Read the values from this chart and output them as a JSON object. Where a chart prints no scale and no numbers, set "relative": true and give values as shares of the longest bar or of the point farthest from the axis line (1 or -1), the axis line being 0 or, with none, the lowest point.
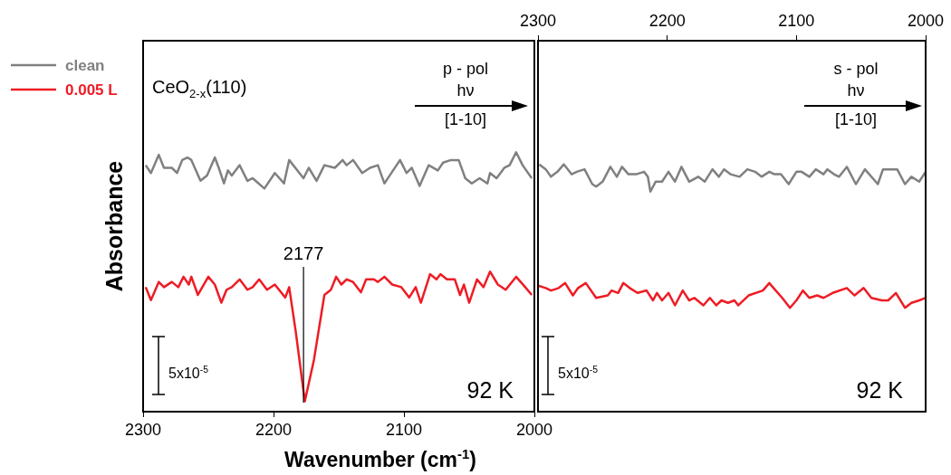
{
  "chart_data": [
    {
      "type": "line",
      "xlabel": "Wavenumber (cm$^{-1}$)",
      "ylabel": "Absorbance",
      "relative": true,
      "xlim": [
        2300,
        2000
      ],
      "xticks": [
        2300,
        2200,
        2100,
        2000
      ],
      "tick_labels": "x",
      "legend": "top left",
      "annotations": [
        "CeO$_{2-x}$(110)",
        "p - pol",
        "hν",
        "[1-10]",
        "5x10$^{-5}$",
        "92 K"
      ],
      "ref_lines": [
        {
          "axis": "x",
          "value": 2177,
          "label": "2177",
          "color": "#000000"
        }
      ],
      "series": [
        {
          "name": "clean",
          "color": "#808080",
          "x": [
            2298,
            2294,
            2288,
            2284,
            2280,
            2278,
            2274,
            2270,
            2266,
            2263,
            2256,
            2251,
            2245,
            2242,
            2238,
            2235,
            2232,
            2226,
            2220,
            2216,
            2207,
            2199,
            2192,
            2188,
            2177,
            2173,
            2167,
            2161,
            2153,
            2147,
            2144,
            2139,
            2132,
            2126,
            2120,
            2115,
            2111,
            2103,
            2098,
            2094,
            2088,
            2081,
            2074,
            2070,
            2064,
            2058,
            2053,
            2048,
            2042,
            2036,
            2034,
            2029,
            2023,
            2019,
            2014,
            2009,
            2002
          ],
          "values": [
            0.95,
            0.92,
            0.99,
            0.94,
            0.94,
            0.94,
            0.92,
            0.97,
            0.98,
            0.97,
            0.89,
            0.91,
            0.98,
            0.94,
            0.88,
            0.93,
            0.91,
            0.95,
            0.89,
            0.9,
            0.86,
            0.92,
            0.88,
            0.97,
            0.9,
            0.94,
            0.89,
            0.95,
            0.94,
            0.97,
            0.95,
            0.97,
            0.92,
            0.94,
            0.95,
            0.88,
            0.91,
            0.97,
            0.92,
            0.94,
            0.87,
            0.95,
            0.93,
            0.96,
            0.97,
            0.97,
            0.9,
            0.88,
            0.9,
            0.88,
            0.92,
            0.9,
            0.94,
            0.95,
            1.0,
            0.95,
            0.9
          ]
        },
        {
          "name": "0.005 L",
          "color": "#ee1c25",
          "x": [
            2298,
            2294,
            2288,
            2284,
            2278,
            2273,
            2269,
            2265,
            2263,
            2258,
            2250,
            2245,
            2240,
            2236,
            2232,
            2226,
            2220,
            2216,
            2211,
            2205,
            2199,
            2191,
            2188,
            2183,
            2176,
            2169,
            2161,
            2156,
            2152,
            2148,
            2144,
            2139,
            2133,
            2129,
            2123,
            2120,
            2115,
            2109,
            2102,
            2096,
            2091,
            2087,
            2080,
            2075,
            2072,
            2067,
            2061,
            2057,
            2054,
            2050,
            2044,
            2039,
            2034,
            2028,
            2022,
            2014,
            2007,
            2002
          ],
          "values": [
            0.48,
            0.43,
            0.5,
            0.48,
            0.5,
            0.48,
            0.52,
            0.49,
            0.52,
            0.45,
            0.52,
            0.49,
            0.42,
            0.47,
            0.48,
            0.51,
            0.47,
            0.48,
            0.51,
            0.47,
            0.49,
            0.44,
            0.48,
            0.31,
            0.04,
            0.2,
            0.45,
            0.47,
            0.52,
            0.49,
            0.51,
            0.5,
            0.46,
            0.51,
            0.51,
            0.5,
            0.52,
            0.49,
            0.48,
            0.44,
            0.48,
            0.42,
            0.53,
            0.51,
            0.53,
            0.51,
            0.51,
            0.45,
            0.49,
            0.42,
            0.51,
            0.48,
            0.54,
            0.49,
            0.47,
            0.52,
            0.48,
            0.45
          ]
        }
      ]
    },
    {
      "type": "line",
      "relative": true,
      "xlim": [
        2300,
        2000
      ],
      "x2lim": [
        2300,
        2000
      ],
      "x2ticks": [
        2300,
        2200,
        2100,
        2000
      ],
      "tick_labels": "x",
      "annotations": [
        "s - pol",
        "hν",
        "[1-10]",
        "5x10$^{-5}$",
        "92 K"
      ],
      "series": [
        {
          "color": "#808080",
          "x": [
            2299,
            2294,
            2290,
            2285,
            2280,
            2274,
            2270,
            2264,
            2258,
            2255,
            2250,
            2244,
            2239,
            2235,
            2230,
            2224,
            2218,
            2215,
            2213,
            2209,
            2204,
            2199,
            2194,
            2189,
            2183,
            2176,
            2171,
            2165,
            2160,
            2156,
            2151,
            2144,
            2138,
            2132,
            2127,
            2121,
            2117,
            2112,
            2106,
            2100,
            2096,
            2090,
            2085,
            2079,
            2076,
            2071,
            2067,
            2061,
            2054,
            2047,
            2037,
            2033,
            2027,
            2022,
            2016,
            2011,
            2005,
            2000
          ],
          "values": [
            1.0,
            0.98,
            0.95,
            0.97,
            1.0,
            0.96,
            0.97,
            0.98,
            0.92,
            0.91,
            0.93,
            0.99,
            0.95,
            0.99,
            0.96,
            0.96,
            0.97,
            0.95,
            0.89,
            0.93,
            0.93,
            0.97,
            0.93,
            0.99,
            0.93,
            0.95,
            0.93,
            0.98,
            0.95,
            0.98,
            0.96,
            0.95,
            0.98,
            0.97,
            0.95,
            0.97,
            0.96,
            0.96,
            0.92,
            0.97,
            0.97,
            0.95,
            0.98,
            0.96,
            0.98,
            0.96,
            0.95,
            0.99,
            0.92,
            0.98,
            0.92,
            0.98,
            0.98,
            0.98,
            0.92,
            0.95,
            0.93,
            0.97
          ]
        },
        {
          "color": "#ee1c25",
          "x": [
            2300,
            2294,
            2290,
            2284,
            2279,
            2273,
            2269,
            2263,
            2255,
            2246,
            2243,
            2238,
            2234,
            2229,
            2223,
            2216,
            2211,
            2208,
            2204,
            2199,
            2194,
            2188,
            2183,
            2179,
            2172,
            2167,
            2162,
            2158,
            2153,
            2148,
            2145,
            2137,
            2126,
            2121,
            2116,
            2111,
            2105,
            2100,
            2095,
            2090,
            2084,
            2079,
            2072,
            2061,
            2055,
            2048,
            2042,
            2034,
            2029,
            2023,
            2016,
            2011,
            2005,
            2000
          ],
          "values": [
            0.51,
            0.5,
            0.49,
            0.5,
            0.52,
            0.47,
            0.5,
            0.52,
            0.46,
            0.47,
            0.49,
            0.48,
            0.52,
            0.5,
            0.48,
            0.49,
            0.45,
            0.48,
            0.45,
            0.48,
            0.43,
            0.49,
            0.45,
            0.46,
            0.43,
            0.46,
            0.43,
            0.45,
            0.44,
            0.45,
            0.43,
            0.47,
            0.49,
            0.52,
            0.49,
            0.46,
            0.42,
            0.45,
            0.49,
            0.46,
            0.47,
            0.46,
            0.48,
            0.5,
            0.47,
            0.5,
            0.46,
            0.45,
            0.45,
            0.48,
            0.42,
            0.44,
            0.45,
            0.46
          ]
        }
      ]
    }
  ]
}
